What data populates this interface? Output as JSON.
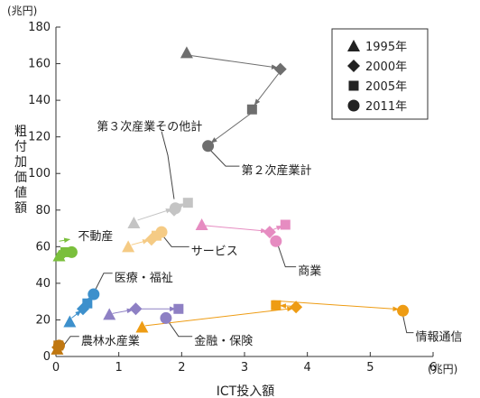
{
  "chart_data": {
    "type": "scatter",
    "title": "",
    "xlabel": "ICT投入額",
    "xunit": "(兆円)",
    "ylabel": "粗付加価値額",
    "yunit": "(兆円)",
    "xlim": [
      0,
      6
    ],
    "ylim": [
      0,
      180
    ],
    "xticks": [
      "0",
      "1",
      "2",
      "3",
      "4",
      "5",
      "6"
    ],
    "yticks": [
      "0",
      "20",
      "40",
      "60",
      "80",
      "100",
      "120",
      "140",
      "160",
      "180"
    ],
    "grid": false,
    "legend_position": "top-right",
    "years": [
      "1995年",
      "2000年",
      "2005年",
      "2011年"
    ],
    "markers": [
      "triangle",
      "diamond",
      "square",
      "circle"
    ],
    "series": [
      {
        "name": "第２次産業計",
        "color": "#6e6e6e",
        "x": [
          2.08,
          3.57,
          3.12,
          2.42
        ],
        "y": [
          166,
          157,
          135,
          115
        ]
      },
      {
        "name": "第３次産業その他計",
        "color": "#c4c4c4",
        "x": [
          1.24,
          1.88,
          2.1,
          1.9
        ],
        "y": [
          73,
          80,
          84,
          81
        ]
      },
      {
        "name": "サービス",
        "color": "#f5cb85",
        "x": [
          1.15,
          1.52,
          1.6,
          1.68
        ],
        "y": [
          60,
          64,
          66,
          68
        ]
      },
      {
        "name": "商業",
        "color": "#e68cc1",
        "x": [
          2.32,
          3.4,
          3.65,
          3.5
        ],
        "y": [
          72,
          68,
          72,
          63
        ]
      },
      {
        "name": "不動産",
        "color": "#7abf3c",
        "x": [
          0.05,
          0.1,
          0.15,
          0.25
        ],
        "y": [
          55,
          56,
          57,
          57
        ]
      },
      {
        "name": "医療・福祉",
        "color": "#3d90cc",
        "x": [
          0.22,
          0.43,
          0.5,
          0.6
        ],
        "y": [
          19,
          26,
          29,
          34
        ]
      },
      {
        "name": "情報通信",
        "color": "#ee9c14",
        "x": [
          1.37,
          3.82,
          3.5,
          5.52
        ],
        "y": [
          16,
          27,
          28,
          25
        ]
      },
      {
        "name": "金融・保険",
        "color": "#8e80c4",
        "x": [
          0.85,
          1.27,
          1.95,
          1.75
        ],
        "y": [
          23,
          26,
          26,
          21
        ]
      },
      {
        "name": "農林水産業",
        "color": "#c07710",
        "x": [
          0.02,
          0.03,
          0.04,
          0.05
        ],
        "y": [
          4,
          5,
          6,
          6
        ]
      }
    ],
    "arrows": [
      {
        "series": "第２次産業計",
        "from": [
          2.13,
          164.5
        ],
        "to": [
          3.52,
          157.8
        ]
      },
      {
        "series": "第２次産業計",
        "from": [
          3.54,
          154.5
        ],
        "to": [
          3.16,
          137.5
        ]
      },
      {
        "series": "第２次産業計",
        "from": [
          3.09,
          132.5
        ],
        "to": [
          2.47,
          116.8
        ]
      },
      {
        "series": "第３次産業その他計",
        "from": [
          1.3,
          74.5
        ],
        "to": [
          1.84,
          80.5
        ]
      },
      {
        "series": "第３次産業その他計",
        "from": [
          1.92,
          81.5
        ],
        "to": [
          2.05,
          83.5
        ]
      },
      {
        "series": "サービス",
        "from": [
          1.2,
          61
        ],
        "to": [
          1.47,
          63.5
        ]
      },
      {
        "series": "商業",
        "from": [
          2.38,
          71.5
        ],
        "to": [
          3.35,
          68.5
        ]
      },
      {
        "series": "商業",
        "from": [
          3.43,
          69
        ],
        "to": [
          3.6,
          71.3
        ]
      },
      {
        "series": "不動産",
        "from": [
          0.05,
          63
        ],
        "to": [
          0.22,
          64
        ]
      },
      {
        "series": "医療・福祉",
        "from": [
          0.25,
          21
        ],
        "to": [
          0.4,
          25
        ]
      },
      {
        "series": "医療・福祉",
        "from": [
          0.52,
          30.5
        ],
        "to": [
          0.58,
          33
        ]
      },
      {
        "series": "金融・保険",
        "from": [
          0.9,
          23.5
        ],
        "to": [
          1.22,
          25.5
        ]
      },
      {
        "series": "金融・保険",
        "from": [
          1.33,
          26
        ],
        "to": [
          1.9,
          26
        ]
      },
      {
        "series": "情報通信",
        "from": [
          1.42,
          16.8
        ],
        "to": [
          3.77,
          26.3
        ]
      },
      {
        "series": "情報通信",
        "from": [
          3.74,
          27.5
        ],
        "to": [
          3.57,
          27.8
        ]
      },
      {
        "series": "情報通信",
        "from": [
          3.45,
          30.5
        ],
        "to": [
          5.45,
          25.8
        ]
      }
    ],
    "labels": [
      {
        "series": "第２次産業計",
        "text": "第２次産業計",
        "at": [
          2.95,
          102
        ],
        "leader": [
          [
            2.45,
            113
          ],
          [
            2.7,
            104
          ],
          [
            2.92,
            104
          ]
        ]
      },
      {
        "series": "第３次産業その他計",
        "text": "第３次産業その他計",
        "at": [
          0.65,
          126
        ],
        "leader": [
          [
            1.68,
            123
          ],
          [
            1.78,
            110
          ],
          [
            1.88,
            86
          ]
        ]
      },
      {
        "series": "サービス",
        "text": "サービス",
        "at": [
          2.15,
          58
        ],
        "leader": [
          [
            1.7,
            66
          ],
          [
            1.84,
            60
          ],
          [
            2.12,
            60
          ]
        ]
      },
      {
        "series": "商業",
        "text": "商業",
        "at": [
          3.85,
          47
        ],
        "leader": [
          [
            3.53,
            61
          ],
          [
            3.65,
            49
          ],
          [
            3.82,
            49
          ]
        ]
      },
      {
        "series": "不動産",
        "text": "不動産",
        "at": [
          0.35,
          66
        ]
      },
      {
        "series": "医療・福祉",
        "text": "医療・福祉",
        "at": [
          0.93,
          43.5
        ],
        "leader": [
          [
            0.62,
            36
          ],
          [
            0.76,
            45.5
          ],
          [
            0.9,
            45.5
          ]
        ]
      },
      {
        "series": "情報通信",
        "text": "情報通信",
        "at": [
          5.72,
          11
        ],
        "leader": [
          [
            5.52,
            22.5
          ],
          [
            5.58,
            13
          ],
          [
            5.69,
            13
          ]
        ]
      },
      {
        "series": "金融・保険",
        "text": "金融・保険",
        "at": [
          2.2,
          9
        ],
        "leader": [
          [
            1.8,
            18.5
          ],
          [
            1.95,
            11
          ],
          [
            2.17,
            11
          ]
        ]
      },
      {
        "series": "農林水産業",
        "text": "農林水産業",
        "at": [
          0.4,
          9
        ],
        "leader": [
          [
            0.1,
            5
          ],
          [
            0.23,
            11
          ],
          [
            0.37,
            11
          ]
        ]
      }
    ]
  }
}
